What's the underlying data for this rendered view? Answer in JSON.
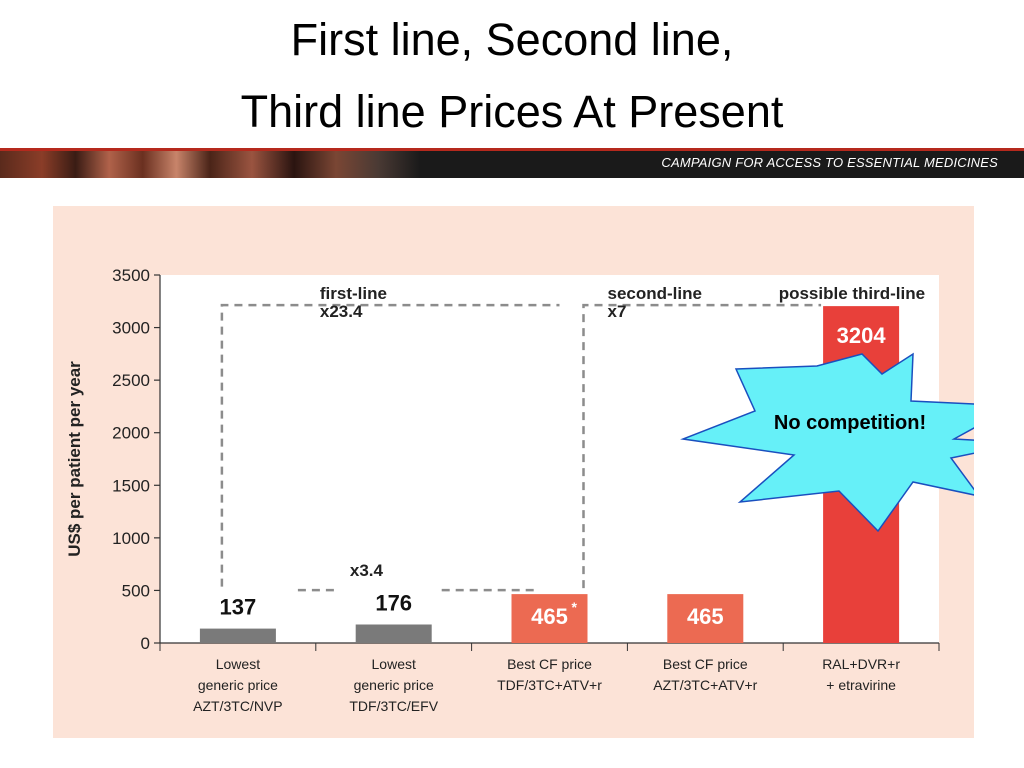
{
  "title": {
    "line1": "First line, Second line,",
    "line2": "Third line Prices At Present"
  },
  "banner": {
    "text": "CAMPAIGN FOR ACCESS TO ESSENTIAL MEDICINES"
  },
  "callout": {
    "text": "No competition!",
    "color": "#66f0f8"
  },
  "chart_data": {
    "type": "bar",
    "ylabel": "US$ per patient per year",
    "ylim": [
      0,
      3500
    ],
    "yticks": [
      0,
      500,
      1000,
      1500,
      2000,
      2500,
      3000,
      3500
    ],
    "categories": [
      {
        "lines": [
          "Lowest",
          "generic price",
          "AZT/3TC/NVP"
        ]
      },
      {
        "lines": [
          "Lowest",
          "generic price",
          "TDF/3TC/EFV"
        ]
      },
      {
        "lines": [
          "Best CF price",
          "TDF/3TC+ATV+r"
        ]
      },
      {
        "lines": [
          "Best CF price",
          "AZT/3TC+ATV+r"
        ]
      },
      {
        "lines": [
          "RAL+DVR+r",
          "+ etravirine"
        ]
      }
    ],
    "values": [
      137,
      176,
      465,
      465,
      3204
    ],
    "value_labels": [
      "137",
      "176",
      "465",
      "465",
      "3204"
    ],
    "value_label_suffix": [
      "",
      "",
      "*",
      "",
      ""
    ],
    "bar_colors": [
      "#7a7a7a",
      "#7a7a7a",
      "#ec6a52",
      "#ec6a52",
      "#e8403a"
    ],
    "annotations": [
      {
        "text": [
          "first-line",
          "x23.4"
        ]
      },
      {
        "text": [
          "second-line",
          "x7"
        ]
      },
      {
        "text": [
          "possible third-line"
        ]
      },
      {
        "text": [
          "x3.4"
        ]
      }
    ]
  }
}
